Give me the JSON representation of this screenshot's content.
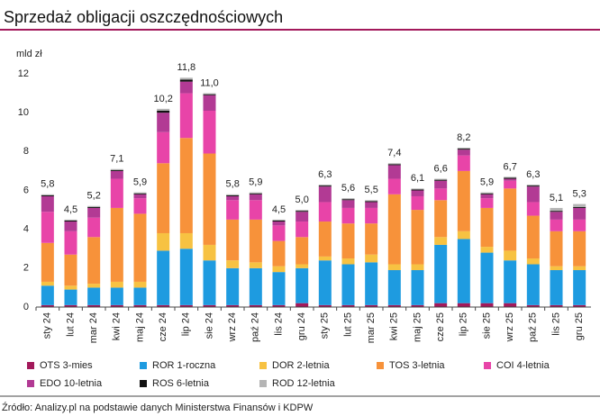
{
  "chart_data": {
    "type": "stacked_bar",
    "title": "Sprzedaż obligacji oszczędnościowych",
    "y_label": "mld zł",
    "source": "Źródło: Analizy.pl na podstawie danych Ministerstwa Finansów i KDPW",
    "categories": [
      "sty 24",
      "lut 24",
      "mar 24",
      "kwi 24",
      "maj 24",
      "cze 24",
      "lip 24",
      "sie 24",
      "wrz 24",
      "paź 24",
      "lis 24",
      "gru 24",
      "sty 25",
      "lut 25",
      "mar 25",
      "kwi 25",
      "maj 25",
      "cze 25",
      "lip 25",
      "sie 25",
      "wrz 25",
      "paź 25",
      "lis 25",
      "gru 25"
    ],
    "series": [
      {
        "name": "OTS 3-mies",
        "color": "#a3195b",
        "values": [
          0.1,
          0.1,
          0.1,
          0.1,
          0.1,
          0.1,
          0.1,
          0.1,
          0.1,
          0.1,
          0.1,
          0.2,
          0.1,
          0.1,
          0.1,
          0.1,
          0.1,
          0.2,
          0.2,
          0.2,
          0.2,
          0.1,
          0.1,
          0.1
        ]
      },
      {
        "name": "ROR 1-roczna",
        "color": "#1e9be0",
        "values": [
          1.0,
          0.8,
          0.9,
          0.9,
          0.9,
          2.8,
          2.9,
          2.3,
          1.9,
          1.9,
          1.7,
          1.8,
          2.3,
          2.1,
          2.2,
          1.8,
          1.8,
          3.0,
          3.3,
          2.6,
          2.2,
          2.1,
          1.8,
          1.8
        ]
      },
      {
        "name": "DOR 2-letnia",
        "color": "#f7c242",
        "values": [
          0.2,
          0.2,
          0.2,
          0.3,
          0.3,
          0.9,
          0.8,
          0.8,
          0.4,
          0.3,
          0.3,
          0.2,
          0.2,
          0.3,
          0.4,
          0.3,
          0.3,
          0.4,
          0.4,
          0.3,
          0.5,
          0.3,
          0.2,
          0.2
        ]
      },
      {
        "name": "TOS 3-letnia",
        "color": "#f7923a",
        "values": [
          2.0,
          1.6,
          2.4,
          3.8,
          3.5,
          3.6,
          4.9,
          4.7,
          2.1,
          2.2,
          1.3,
          1.4,
          1.8,
          1.8,
          1.6,
          3.6,
          2.8,
          1.9,
          3.1,
          2.0,
          3.2,
          2.2,
          1.8,
          1.8
        ]
      },
      {
        "name": "COI 4-letnia",
        "color": "#e844a8",
        "values": [
          1.6,
          1.2,
          1.0,
          1.5,
          0.8,
          1.6,
          2.3,
          2.2,
          1.0,
          1.0,
          0.8,
          0.8,
          1.0,
          0.8,
          0.8,
          0.8,
          0.7,
          0.6,
          0.8,
          0.5,
          0.4,
          0.7,
          0.6,
          0.6
        ]
      },
      {
        "name": "EDO 10-letnia",
        "color": "#b23a94",
        "values": [
          0.8,
          0.5,
          0.5,
          0.4,
          0.2,
          1.0,
          0.6,
          0.8,
          0.2,
          0.3,
          0.2,
          0.5,
          0.8,
          0.4,
          0.3,
          0.7,
          0.3,
          0.4,
          0.3,
          0.2,
          0.1,
          0.8,
          0.4,
          0.6
        ]
      },
      {
        "name": "ROS 6-letnia",
        "color": "#111111",
        "values": [
          0.05,
          0.05,
          0.05,
          0.05,
          0.05,
          0.1,
          0.1,
          0.05,
          0.05,
          0.05,
          0.05,
          0.05,
          0.05,
          0.05,
          0.05,
          0.05,
          0.05,
          0.05,
          0.05,
          0.05,
          0.05,
          0.05,
          0.05,
          0.05
        ]
      },
      {
        "name": "ROD 12-letnia",
        "color": "#b5b5b5",
        "values": [
          0.05,
          0.05,
          0.05,
          0.05,
          0.05,
          0.1,
          0.1,
          0.05,
          0.05,
          0.05,
          0.05,
          0.05,
          0.05,
          0.05,
          0.05,
          0.05,
          0.05,
          0.05,
          0.05,
          0.05,
          0.05,
          0.05,
          0.15,
          0.15
        ]
      }
    ],
    "totals": {
      "values": [
        5.8,
        4.5,
        5.2,
        7.1,
        5.9,
        10.2,
        11.8,
        11.0,
        5.8,
        5.9,
        4.5,
        5.0,
        6.3,
        5.6,
        5.5,
        7.4,
        6.1,
        6.6,
        8.2,
        5.9,
        6.7,
        6.3,
        5.1,
        5.3
      ],
      "value_labels": [
        "5,8",
        "4,5",
        "5,2",
        "7,1",
        "5,9",
        "10,2",
        "11,8",
        "11,0",
        "5,8",
        "5,9",
        "4,5",
        "5,0",
        "6,3",
        "5,6",
        "5,5",
        "7,4",
        "6,1",
        "6,6",
        "8,2",
        "5,9",
        "6,7",
        "6,3",
        "5,1",
        "5,3"
      ]
    },
    "ylim": [
      0,
      12
    ],
    "yticks": [
      0,
      2,
      4,
      6,
      8,
      10,
      12
    ],
    "grid": false
  }
}
